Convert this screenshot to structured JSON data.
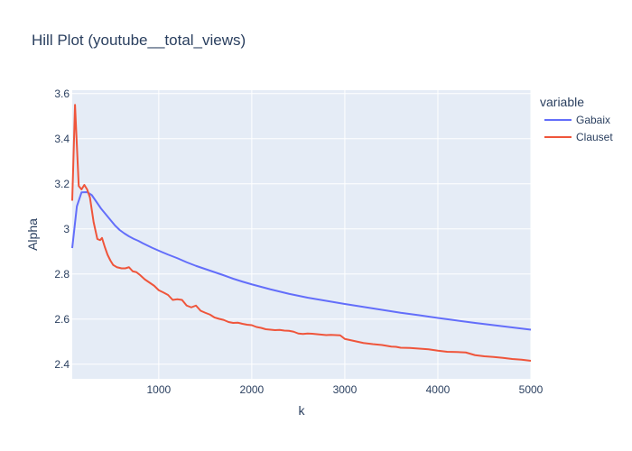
{
  "chart_data": {
    "type": "line",
    "title": "Hill Plot (youtube__total_views)",
    "xlabel": "k",
    "ylabel": "Alpha",
    "xlim": [
      70,
      5000
    ],
    "ylim": [
      2.335,
      3.615
    ],
    "x_ticks": [
      1000,
      2000,
      3000,
      4000,
      5000
    ],
    "y_ticks": [
      2.4,
      2.6,
      2.8,
      3,
      3.2,
      3.4,
      3.6
    ],
    "x_tick_labels": [
      "1000",
      "2000",
      "3000",
      "4000",
      "5000"
    ],
    "y_tick_labels": [
      "2.4",
      "2.6",
      "2.8",
      "3",
      "3.2",
      "3.4",
      "3.6"
    ],
    "grid": true,
    "legend": {
      "title": "variable",
      "position": "top-right"
    },
    "series": [
      {
        "name": "Gabaix",
        "color": "#636efa",
        "points": [
          [
            70,
            2.915
          ],
          [
            120,
            3.1
          ],
          [
            170,
            3.162
          ],
          [
            230,
            3.163
          ],
          [
            280,
            3.15
          ],
          [
            330,
            3.12
          ],
          [
            380,
            3.09
          ],
          [
            430,
            3.065
          ],
          [
            480,
            3.04
          ],
          [
            530,
            3.015
          ],
          [
            580,
            2.995
          ],
          [
            630,
            2.98
          ],
          [
            680,
            2.967
          ],
          [
            730,
            2.956
          ],
          [
            780,
            2.947
          ],
          [
            830,
            2.936
          ],
          [
            880,
            2.926
          ],
          [
            930,
            2.916
          ],
          [
            980,
            2.907
          ],
          [
            1030,
            2.898
          ],
          [
            1100,
            2.886
          ],
          [
            1200,
            2.87
          ],
          [
            1300,
            2.852
          ],
          [
            1400,
            2.836
          ],
          [
            1500,
            2.822
          ],
          [
            1600,
            2.808
          ],
          [
            1700,
            2.794
          ],
          [
            1800,
            2.779
          ],
          [
            1900,
            2.766
          ],
          [
            2000,
            2.754
          ],
          [
            2200,
            2.732
          ],
          [
            2400,
            2.712
          ],
          [
            2600,
            2.695
          ],
          [
            2800,
            2.681
          ],
          [
            3000,
            2.667
          ],
          [
            3200,
            2.654
          ],
          [
            3400,
            2.641
          ],
          [
            3600,
            2.628
          ],
          [
            3800,
            2.617
          ],
          [
            4000,
            2.605
          ],
          [
            4200,
            2.594
          ],
          [
            4400,
            2.583
          ],
          [
            4600,
            2.573
          ],
          [
            4800,
            2.563
          ],
          [
            5000,
            2.553
          ]
        ]
      },
      {
        "name": "Clauset",
        "color": "#ef553b",
        "points": [
          [
            70,
            3.125
          ],
          [
            100,
            3.55
          ],
          [
            140,
            3.19
          ],
          [
            170,
            3.175
          ],
          [
            200,
            3.195
          ],
          [
            230,
            3.175
          ],
          [
            260,
            3.14
          ],
          [
            300,
            3.03
          ],
          [
            340,
            2.955
          ],
          [
            370,
            2.95
          ],
          [
            390,
            2.96
          ],
          [
            420,
            2.92
          ],
          [
            450,
            2.885
          ],
          [
            480,
            2.86
          ],
          [
            510,
            2.84
          ],
          [
            550,
            2.83
          ],
          [
            600,
            2.825
          ],
          [
            640,
            2.825
          ],
          [
            680,
            2.83
          ],
          [
            720,
            2.812
          ],
          [
            760,
            2.808
          ],
          [
            800,
            2.795
          ],
          [
            850,
            2.776
          ],
          [
            900,
            2.762
          ],
          [
            950,
            2.748
          ],
          [
            1000,
            2.728
          ],
          [
            1050,
            2.718
          ],
          [
            1100,
            2.707
          ],
          [
            1150,
            2.685
          ],
          [
            1200,
            2.688
          ],
          [
            1250,
            2.685
          ],
          [
            1300,
            2.66
          ],
          [
            1350,
            2.652
          ],
          [
            1400,
            2.66
          ],
          [
            1450,
            2.637
          ],
          [
            1500,
            2.628
          ],
          [
            1550,
            2.62
          ],
          [
            1600,
            2.607
          ],
          [
            1650,
            2.601
          ],
          [
            1700,
            2.596
          ],
          [
            1750,
            2.587
          ],
          [
            1800,
            2.583
          ],
          [
            1850,
            2.584
          ],
          [
            1900,
            2.579
          ],
          [
            1950,
            2.575
          ],
          [
            2000,
            2.573
          ],
          [
            2050,
            2.565
          ],
          [
            2100,
            2.561
          ],
          [
            2150,
            2.555
          ],
          [
            2200,
            2.553
          ],
          [
            2250,
            2.551
          ],
          [
            2300,
            2.552
          ],
          [
            2350,
            2.549
          ],
          [
            2400,
            2.548
          ],
          [
            2450,
            2.544
          ],
          [
            2500,
            2.536
          ],
          [
            2550,
            2.534
          ],
          [
            2600,
            2.536
          ],
          [
            2650,
            2.535
          ],
          [
            2700,
            2.533
          ],
          [
            2750,
            2.531
          ],
          [
            2800,
            2.529
          ],
          [
            2850,
            2.53
          ],
          [
            2900,
            2.529
          ],
          [
            2950,
            2.528
          ],
          [
            3000,
            2.512
          ],
          [
            3100,
            2.503
          ],
          [
            3200,
            2.494
          ],
          [
            3300,
            2.489
          ],
          [
            3400,
            2.485
          ],
          [
            3500,
            2.478
          ],
          [
            3550,
            2.477
          ],
          [
            3600,
            2.473
          ],
          [
            3700,
            2.472
          ],
          [
            3800,
            2.469
          ],
          [
            3900,
            2.466
          ],
          [
            4000,
            2.46
          ],
          [
            4100,
            2.455
          ],
          [
            4200,
            2.454
          ],
          [
            4300,
            2.452
          ],
          [
            4400,
            2.44
          ],
          [
            4500,
            2.435
          ],
          [
            4600,
            2.432
          ],
          [
            4700,
            2.428
          ],
          [
            4800,
            2.423
          ],
          [
            4900,
            2.42
          ],
          [
            5000,
            2.415
          ]
        ]
      }
    ]
  }
}
